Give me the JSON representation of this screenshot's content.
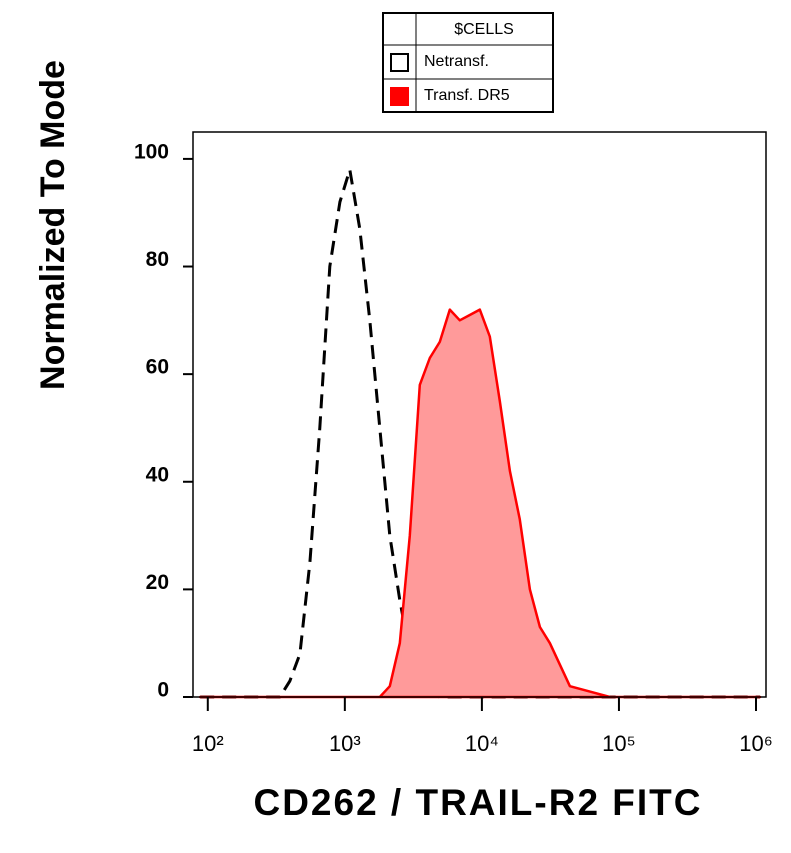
{
  "chart_data": {
    "type": "histogram-overlay",
    "legend_title": "$CELLS",
    "x_label": "CD262 / TRAIL-R2 FITC",
    "y_label": "Normalized To Mode",
    "x_scale": "log",
    "xlim": [
      78,
      1183000
    ],
    "ylim": [
      0,
      105
    ],
    "xticks": [
      {
        "value": 100,
        "label": "10²"
      },
      {
        "value": 1000,
        "label": "10³"
      },
      {
        "value": 10000,
        "label": "10⁴"
      },
      {
        "value": 100000,
        "label": "10⁵"
      },
      {
        "value": 1000000,
        "label": "10⁶"
      }
    ],
    "yticks": [
      0,
      20,
      40,
      60,
      80,
      100
    ],
    "x": [
      88,
      336,
      397,
      470,
      556,
      657,
      777,
      920,
      1087,
      1286,
      1521,
      1799,
      2128,
      2518,
      2979,
      3524,
      4169,
      4932,
      5834,
      6902,
      8166,
      9661,
      11430,
      13520,
      16000,
      18920,
      22390,
      26490,
      31330,
      37070,
      43850,
      61380,
      85900,
      390000,
      1070000
    ],
    "series": [
      {
        "name": "Netransf.",
        "color": "#000000",
        "style": "dashed",
        "fill": false,
        "values": [
          0,
          0,
          3,
          8,
          25,
          50,
          80,
          92,
          98,
          87,
          70,
          50,
          30,
          18,
          8,
          3,
          1,
          0,
          0,
          0,
          0,
          0,
          0,
          0,
          0,
          0,
          0,
          0,
          0,
          0,
          0,
          0,
          0,
          0,
          0
        ]
      },
      {
        "name": "Transf. DR5",
        "color": "#ff0000",
        "fill_color": "#ff9a9a",
        "style": "solid",
        "fill": true,
        "values": [
          0,
          0,
          0,
          0,
          0,
          0,
          0,
          0,
          0,
          0,
          0,
          0,
          2,
          10,
          30,
          58,
          63,
          66,
          72,
          70,
          71,
          72,
          67,
          55,
          42,
          33,
          20,
          13,
          10,
          6,
          2,
          1,
          0,
          0,
          0
        ]
      }
    ]
  }
}
